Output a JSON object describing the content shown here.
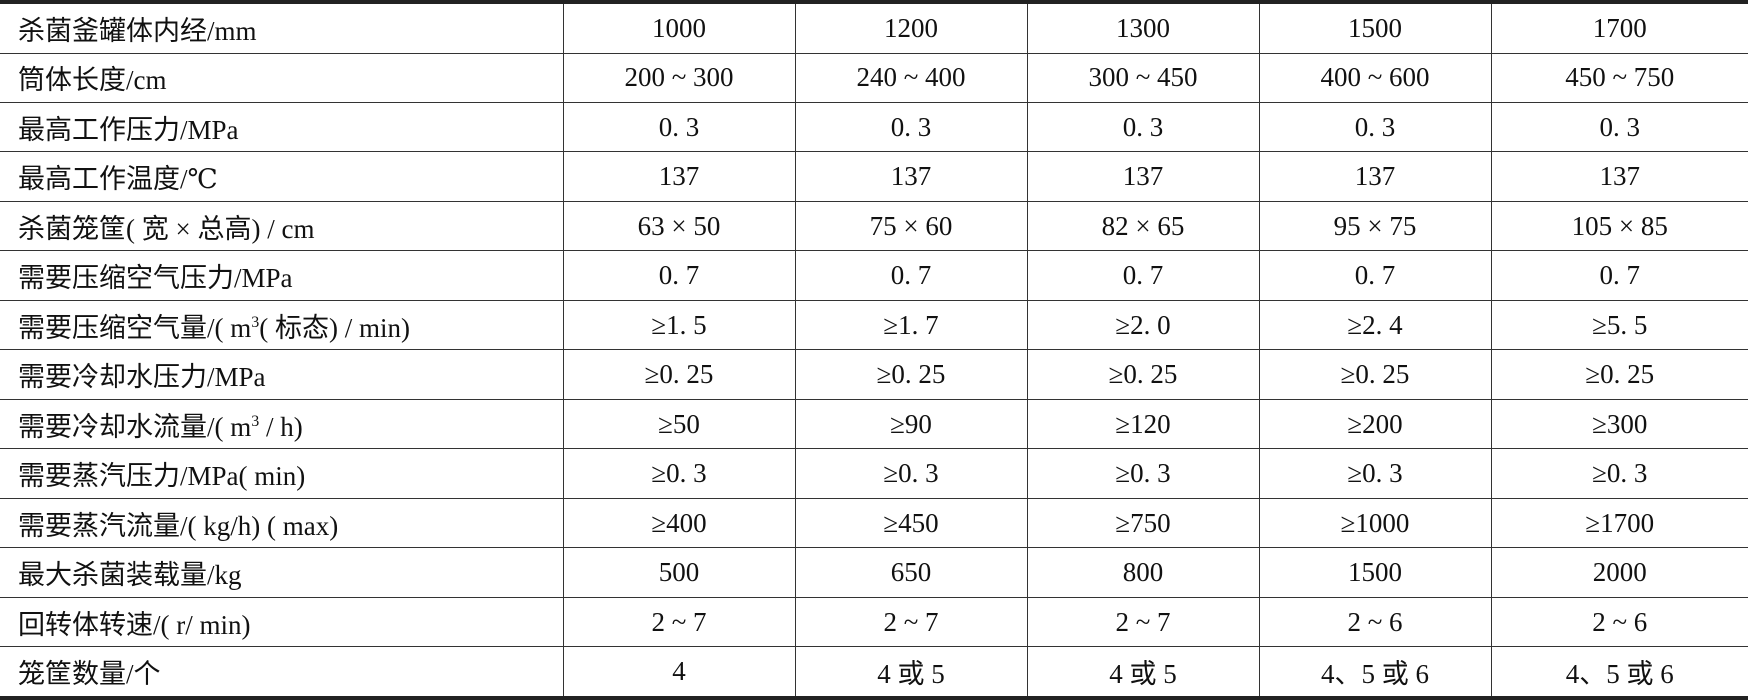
{
  "table": {
    "rows": [
      {
        "label": "杀菌釜罐体内经/mm",
        "values": [
          "1000",
          "1200",
          "1300",
          "1500",
          "1700"
        ]
      },
      {
        "label": "筒体长度/cm",
        "values": [
          "200 ~ 300",
          "240 ~ 400",
          "300 ~ 450",
          "400 ~ 600",
          "450 ~ 750"
        ]
      },
      {
        "label": "最高工作压力/MPa",
        "values": [
          "0. 3",
          "0. 3",
          "0. 3",
          "0. 3",
          "0. 3"
        ]
      },
      {
        "label": "最高工作温度/℃",
        "values": [
          "137",
          "137",
          "137",
          "137",
          "137"
        ]
      },
      {
        "label": "杀菌笼筐( 宽 × 总高) / cm",
        "values": [
          "63 × 50",
          "75 × 60",
          "82 × 65",
          "95 × 75",
          "105 × 85"
        ]
      },
      {
        "label": "需要压缩空气压力/MPa",
        "values": [
          "0. 7",
          "0. 7",
          "0. 7",
          "0. 7",
          "0. 7"
        ]
      },
      {
        "label_pre": "需要压缩空气量/( m",
        "label_sup": "3",
        "label_post": "( 标态) / min)",
        "values": [
          "≥1. 5",
          "≥1. 7",
          "≥2. 0",
          "≥2. 4",
          "≥5. 5"
        ]
      },
      {
        "label": "需要冷却水压力/MPa",
        "values": [
          "≥0. 25",
          "≥0. 25",
          "≥0. 25",
          "≥0. 25",
          "≥0. 25"
        ]
      },
      {
        "label_pre": "需要冷却水流量/( m",
        "label_sup": "3",
        "label_post": " / h)",
        "values": [
          "≥50",
          "≥90",
          "≥120",
          "≥200",
          "≥300"
        ]
      },
      {
        "label": "需要蒸汽压力/MPa( min)",
        "values": [
          "≥0. 3",
          "≥0. 3",
          "≥0. 3",
          "≥0. 3",
          "≥0. 3"
        ]
      },
      {
        "label": "需要蒸汽流量/( kg/h) ( max)",
        "values": [
          "≥400",
          "≥450",
          "≥750",
          "≥1000",
          "≥1700"
        ]
      },
      {
        "label": "最大杀菌装载量/kg",
        "values": [
          "500",
          "650",
          "800",
          "1500",
          "2000"
        ]
      },
      {
        "label": "回转体转速/( r/ min)",
        "values": [
          "2 ~ 7",
          "2 ~ 7",
          "2 ~ 7",
          "2 ~ 6",
          "2 ~ 6"
        ]
      },
      {
        "label": "笼筐数量/个",
        "values": [
          "4",
          "4 或 5",
          "4 或 5",
          "4、5 或 6",
          "4、5 或 6"
        ]
      }
    ]
  }
}
